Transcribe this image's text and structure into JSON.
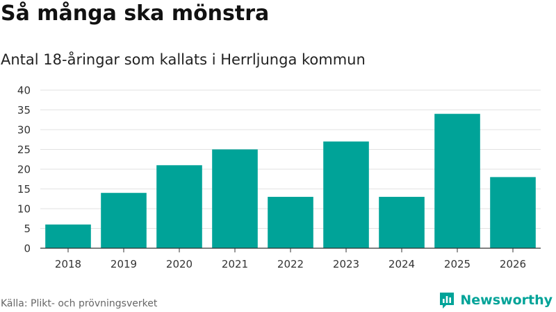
{
  "title": "Så många ska mönstra",
  "subtitle": "Antal 18-åringar som kallats i Herrljunga kommun",
  "source": "Källa: Plikt- och prövningsverket",
  "brand": {
    "name": "Newsworthy",
    "icon": "newsworthy-logo-icon",
    "color": "#00a398"
  },
  "colors": {
    "bar": "#00a398",
    "grid": "#e2e2e2",
    "axis": "#333333"
  },
  "chart_data": {
    "type": "bar",
    "title": "Så många ska mönstra",
    "subtitle": "Antal 18-åringar som kallats i Herrljunga kommun",
    "xlabel": "",
    "ylabel": "",
    "categories": [
      "2018",
      "2019",
      "2020",
      "2021",
      "2022",
      "2023",
      "2024",
      "2025",
      "2026"
    ],
    "values": [
      6,
      14,
      21,
      25,
      13,
      27,
      13,
      34,
      18
    ],
    "ylim": [
      0,
      40
    ],
    "yticks": [
      0,
      5,
      10,
      15,
      20,
      25,
      30,
      35,
      40
    ],
    "grid": true,
    "legend": "none"
  }
}
